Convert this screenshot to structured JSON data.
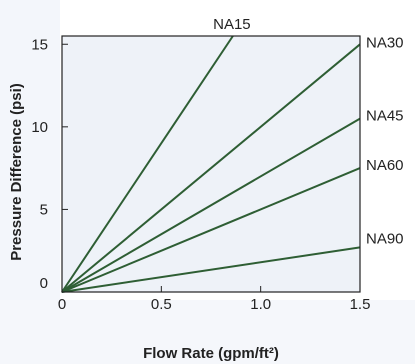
{
  "chart_data": {
    "type": "line",
    "title": "",
    "xlabel": "Flow Rate (gpm/ft²)",
    "ylabel": "Pressure Difference (psi)",
    "xlim": [
      0,
      1.5
    ],
    "ylim": [
      0,
      15.5
    ],
    "xticks": [
      0,
      0.5,
      1.0,
      1.5
    ],
    "xtick_labels": [
      "0",
      "0.5",
      "1.0",
      "1.5"
    ],
    "yticks": [
      0,
      5,
      10,
      15
    ],
    "ytick_labels": [
      "0",
      "5",
      "10",
      "15"
    ],
    "grid": false,
    "series": [
      {
        "name": "NA15",
        "x": [
          0,
          0.86
        ],
        "y": [
          0,
          15.5
        ]
      },
      {
        "name": "NA30",
        "x": [
          0,
          1.5
        ],
        "y": [
          0,
          15.0
        ]
      },
      {
        "name": "NA45",
        "x": [
          0,
          1.5
        ],
        "y": [
          0,
          10.5
        ]
      },
      {
        "name": "NA60",
        "x": [
          0,
          1.5
        ],
        "y": [
          0,
          7.5
        ]
      },
      {
        "name": "NA90",
        "x": [
          0,
          1.5
        ],
        "y": [
          0,
          2.7
        ]
      }
    ],
    "colors": {
      "line": "#2e5e34",
      "plot_bg": "#eef2f8",
      "frame": "#222222",
      "page_bg": "#ffffff",
      "watermark": "#e6ebf4"
    }
  }
}
